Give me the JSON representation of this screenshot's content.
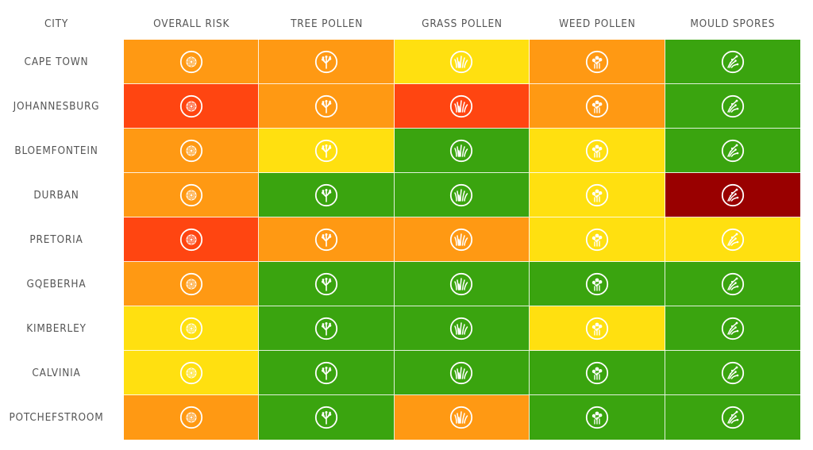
{
  "chart_data": {
    "type": "table",
    "columns": [
      {
        "label": "CITY"
      },
      {
        "label": "OVERALL RISK",
        "icon": "pollen-grain-icon"
      },
      {
        "label": "TREE POLLEN",
        "icon": "tree-icon"
      },
      {
        "label": "GRASS POLLEN",
        "icon": "grass-icon"
      },
      {
        "label": "WEED POLLEN",
        "icon": "weed-icon"
      },
      {
        "label": "MOULD SPORES",
        "icon": "mould-icon"
      }
    ],
    "levels": {
      "very-low": "#3aa40f",
      "low": "#ffe010",
      "moderate": "#ff9913",
      "high": "#ff4511",
      "very-high": "#990000"
    },
    "rows": [
      {
        "city": "CAPE TOWN",
        "values": [
          "moderate",
          "moderate",
          "low",
          "moderate",
          "very-low"
        ]
      },
      {
        "city": "JOHANNESBURG",
        "values": [
          "high",
          "moderate",
          "high",
          "moderate",
          "very-low"
        ]
      },
      {
        "city": "BLOEMFONTEIN",
        "values": [
          "moderate",
          "low",
          "very-low",
          "low",
          "very-low"
        ]
      },
      {
        "city": "DURBAN",
        "values": [
          "moderate",
          "very-low",
          "very-low",
          "low",
          "very-high"
        ]
      },
      {
        "city": "PRETORIA",
        "values": [
          "high",
          "moderate",
          "moderate",
          "low",
          "low"
        ]
      },
      {
        "city": "GQEBERHA",
        "values": [
          "moderate",
          "very-low",
          "very-low",
          "very-low",
          "very-low"
        ]
      },
      {
        "city": "KIMBERLEY",
        "values": [
          "low",
          "very-low",
          "very-low",
          "low",
          "very-low"
        ]
      },
      {
        "city": "CALVINIA",
        "values": [
          "low",
          "very-low",
          "very-low",
          "very-low",
          "very-low"
        ]
      },
      {
        "city": "POTCHEFSTROOM",
        "values": [
          "moderate",
          "very-low",
          "moderate",
          "very-low",
          "very-low"
        ]
      }
    ]
  }
}
